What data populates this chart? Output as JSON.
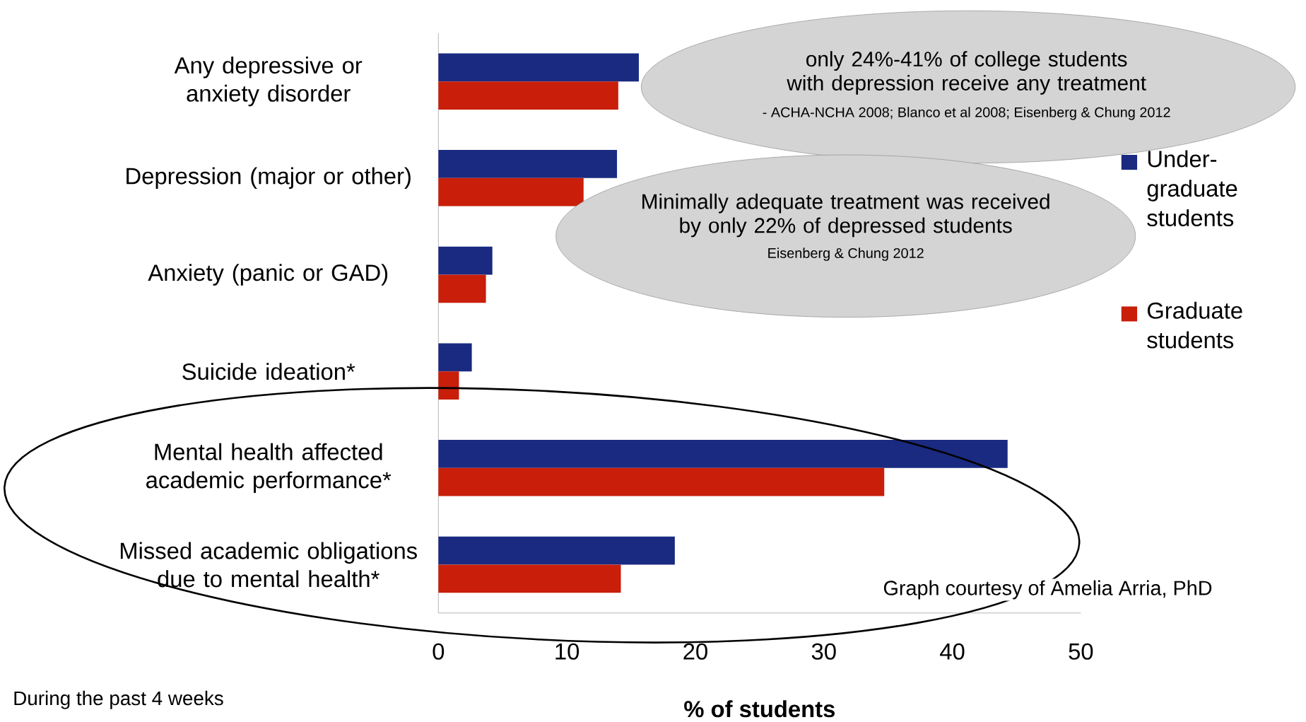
{
  "chart_data": {
    "type": "bar",
    "orientation": "horizontal",
    "categories": [
      "Any depressive or anxiety disorder",
      "Depression (major or other)",
      "Anxiety (panic or GAD)",
      "Suicide ideation*",
      "Mental health affected academic performance*",
      "Missed academic obligations due to mental health*"
    ],
    "series": [
      {
        "name": "Under-graduate students",
        "color": "#1a2a80",
        "values": [
          15.6,
          13.9,
          4.2,
          2.6,
          44.3,
          18.4
        ]
      },
      {
        "name": "Graduate students",
        "color": "#c81e0a",
        "values": [
          14.0,
          11.3,
          3.7,
          1.6,
          34.7,
          14.2
        ]
      }
    ],
    "xlim": [
      0,
      50
    ],
    "xticks": [
      0,
      10,
      20,
      30,
      40,
      50
    ],
    "xlabel": "% of students",
    "legend": "right",
    "annotations": [
      "only 24%-41% of college students with depression receive any treatment",
      "- ACHA-NCHA 2008; Blanco et al 2008; Eisenberg & Chung  2012",
      "Minimally adequate treatment was received by only 22% of depressed students",
      "Eisenberg & Chung  2012",
      "Graph courtesy of Amelia Arria, PhD",
      "During the past 4 weeks"
    ]
  }
}
